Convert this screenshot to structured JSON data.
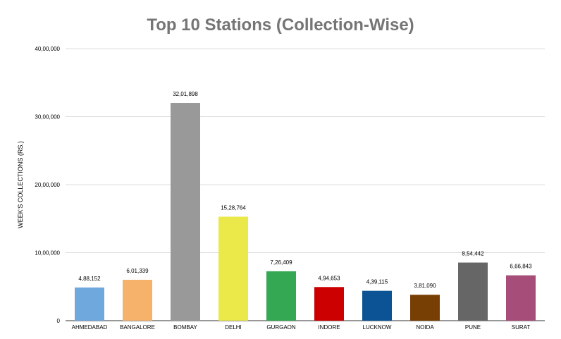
{
  "chart_data": {
    "type": "bar",
    "title": "Top 10 Stations (Collection-Wise)",
    "xlabel": "",
    "ylabel": "WEEK'S COLLECTIONS (RS.)",
    "ylim": [
      0,
      4000000
    ],
    "yticks": [
      0,
      1000000,
      2000000,
      3000000,
      4000000
    ],
    "ytick_labels": [
      "0",
      "10,00,000",
      "20,00,000",
      "30,00,000",
      "40,00,000"
    ],
    "grid": true,
    "legend": "none",
    "categories": [
      "AHMEDABAD",
      "BANGALORE",
      "BOMBAY",
      "DELHI",
      "GURGAON",
      "INDORE",
      "LUCKNOW",
      "NOIDA",
      "PUNE",
      "SURAT"
    ],
    "values": [
      488152,
      601339,
      3201898,
      1528764,
      726409,
      494653,
      439115,
      381090,
      854442,
      666843
    ],
    "value_labels": [
      "4,88,152",
      "6,01,339",
      "32,01,898",
      "15,28,764",
      "7,26,409",
      "4,94,653",
      "4,39,115",
      "3,81,090",
      "8,54,442",
      "6,66,843"
    ],
    "colors": [
      "#6fa8dc",
      "#f6b26b",
      "#999999",
      "#ebe849",
      "#34a853",
      "#cc0000",
      "#0b5394",
      "#783f04",
      "#666666",
      "#a64d79"
    ],
    "grid_color": "#dcdcdc",
    "axis_color": "#333333",
    "title_color": "#757575"
  }
}
